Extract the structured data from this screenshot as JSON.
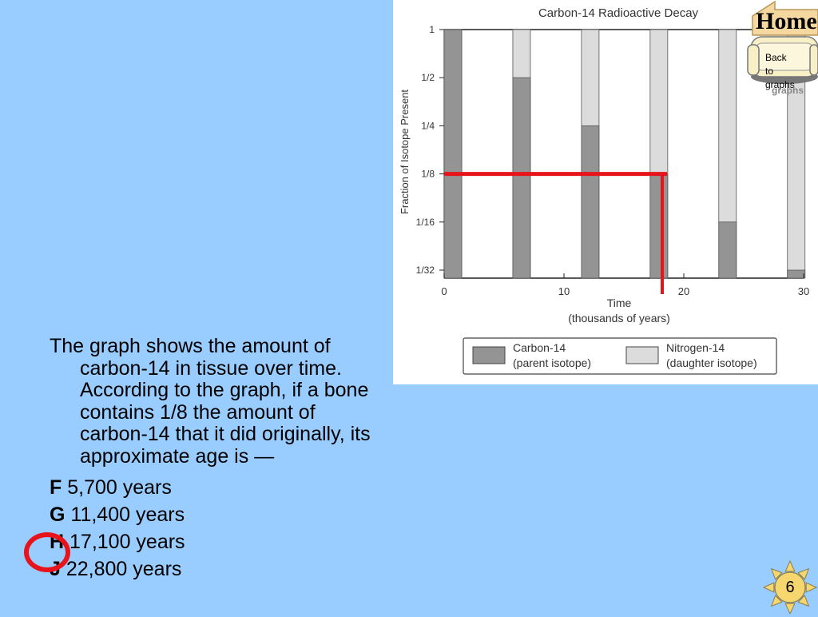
{
  "chart_data": {
    "type": "bar",
    "title": "Carbon-14 Radioactive Decay",
    "xlabel": "Time",
    "xlabel_sub": "(thousands of years)",
    "ylabel": "Fraction of Isotope Present",
    "xlim": [
      0,
      30
    ],
    "x_ticks": [
      0,
      10,
      20,
      30
    ],
    "x_tick_labels": [
      "0",
      "10",
      "20",
      "30"
    ],
    "y_ticks": [
      1,
      0.5,
      0.25,
      0.125,
      0.0625,
      0.03125
    ],
    "y_tick_labels": [
      "1",
      "1/2",
      "1/4",
      "1/8",
      "1/16",
      "1/32"
    ],
    "stacked": true,
    "bar_x": [
      0,
      5.73,
      11.46,
      17.19,
      22.92,
      28.65
    ],
    "series": [
      {
        "name": "Carbon-14",
        "sublabel": "(parent isotope)",
        "color": "#949494",
        "values": [
          1,
          0.5,
          0.25,
          0.125,
          0.0625,
          0.03125
        ]
      },
      {
        "name": "Nitrogen-14",
        "sublabel": "(daughter isotope)",
        "color": "#dcdcdc",
        "values": [
          0,
          0.5,
          0.75,
          0.875,
          0.9375,
          0.96875
        ]
      }
    ],
    "annotation": {
      "y_level": 0.125,
      "x_at": 18.2,
      "color": "#e8141c"
    }
  },
  "question": {
    "text": "The graph shows the amount of carbon-14 in tissue over time. According to the graph, if a bone contains 1/8 the amount of carbon-14 that it did originally, its approximate age is —",
    "options": [
      {
        "letter": "F",
        "text": "5,700 years"
      },
      {
        "letter": "G",
        "text": "11,400 years"
      },
      {
        "letter": "H",
        "text": "17,100 years"
      },
      {
        "letter": "J",
        "text": "22,800 years"
      }
    ],
    "selected": "H"
  },
  "nav": {
    "home_label": "Home",
    "back_label": "Back to graphs",
    "back_shadow": "graphs",
    "page_number": "6"
  },
  "colors": {
    "background": "#99ccff",
    "highlight": "#e8141c",
    "sun": "#f5d76e"
  }
}
